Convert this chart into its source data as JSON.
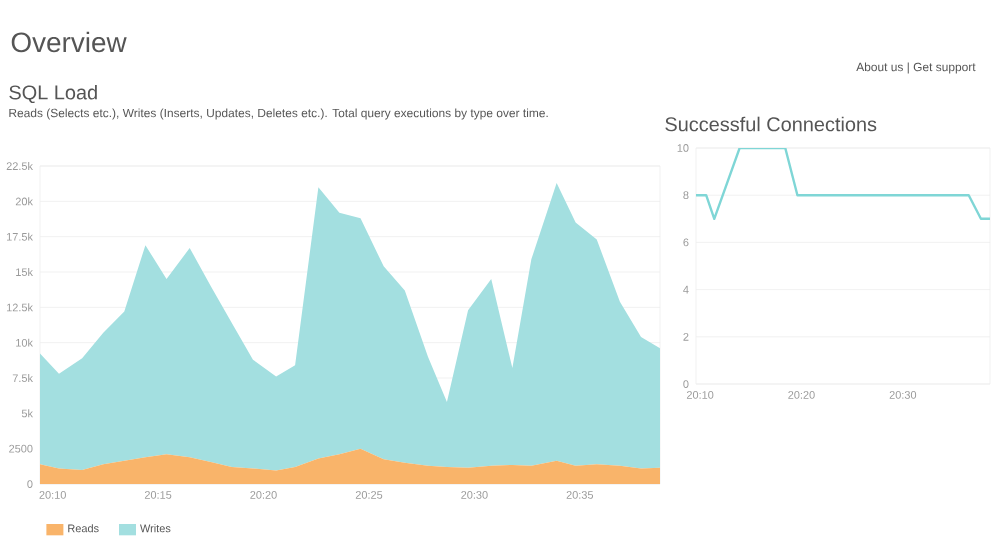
{
  "chart_data": [
    {
      "type": "area",
      "stacked": true,
      "title": "SQL Load",
      "subtitle": "Reads (Selects etc.), Writes (Inserts, Updates, Deletes etc.). Total query executions by type over time.",
      "annotations": [
        "Overview"
      ],
      "x": [
        20.1567,
        20.1717,
        20.19,
        20.2067,
        20.2233,
        20.24,
        20.2567,
        20.275,
        20.2917,
        20.3083,
        20.325,
        20.3433,
        20.3583,
        20.3767,
        20.3933,
        20.41,
        20.4283,
        20.445,
        20.4633,
        20.4783,
        20.495,
        20.5133,
        20.53,
        20.545,
        20.565,
        20.58,
        20.5967,
        20.615,
        20.6317,
        20.6467
      ],
      "series": [
        {
          "name": "Reads",
          "color": "#f9b46a",
          "values": [
            1400,
            1100,
            1000,
            1400,
            1650,
            1900,
            2100,
            1900,
            1550,
            1200,
            1100,
            950,
            1200,
            1800,
            2100,
            2500,
            1750,
            1500,
            1300,
            1200,
            1150,
            1300,
            1350,
            1300,
            1650,
            1300,
            1400,
            1300,
            1100,
            1150
          ]
        },
        {
          "name": "Writes",
          "color": "#a3dfe0",
          "values": [
            7840,
            6700,
            7900,
            9300,
            10550,
            15000,
            12400,
            14800,
            12450,
            10200,
            7700,
            6650,
            7200,
            19200,
            17100,
            16300,
            13650,
            12200,
            7700,
            4600,
            11150,
            13200,
            6850,
            14600,
            19650,
            17200,
            15900,
            11600,
            9300,
            8450
          ]
        }
      ],
      "xlim": [
        20.1567,
        20.6467
      ],
      "ylim": [
        0,
        22500
      ],
      "xticks": [
        {
          "value": 20.1667,
          "label": "20:10"
        },
        {
          "value": 20.25,
          "label": "20:15"
        },
        {
          "value": 20.3333,
          "label": "20:20"
        },
        {
          "value": 20.4167,
          "label": "20:25"
        },
        {
          "value": 20.5,
          "label": "20:30"
        },
        {
          "value": 20.5833,
          "label": "20:35"
        }
      ],
      "yticks": [
        0,
        2500,
        {
          "value": 5000,
          "label": "5k"
        },
        {
          "value": 7500,
          "label": "7.5k"
        },
        {
          "value": 10000,
          "label": "10k"
        },
        {
          "value": 12500,
          "label": "12.5k"
        },
        {
          "value": 15000,
          "label": "15k"
        },
        {
          "value": 17500,
          "label": "17.5k"
        },
        {
          "value": 20000,
          "label": "20k"
        },
        {
          "value": 22500,
          "label": "22.5k"
        }
      ],
      "grid": "y",
      "legend": "bottom left"
    },
    {
      "type": "line",
      "title": "Successful Connections",
      "annotations": [
        "About us | Get support"
      ],
      "x": [
        20.16,
        20.1767,
        20.19,
        20.2317,
        20.3067,
        20.3267,
        20.6083,
        20.6283,
        20.6433
      ],
      "series": [
        {
          "color": "#7fd6d6",
          "values": [
            8,
            8,
            7,
            10,
            10,
            8,
            8,
            7,
            7
          ]
        }
      ],
      "xlim": [
        20.16,
        20.6433
      ],
      "ylim": [
        0,
        10
      ],
      "xticks": [
        {
          "value": 20.1667,
          "label": "20:10"
        },
        {
          "value": 20.3333,
          "label": "20:20"
        },
        {
          "value": 20.5,
          "label": "20:30"
        }
      ],
      "yticks": [
        0,
        2,
        4,
        6,
        8,
        10
      ],
      "grid": "y",
      "marker": "none"
    }
  ]
}
